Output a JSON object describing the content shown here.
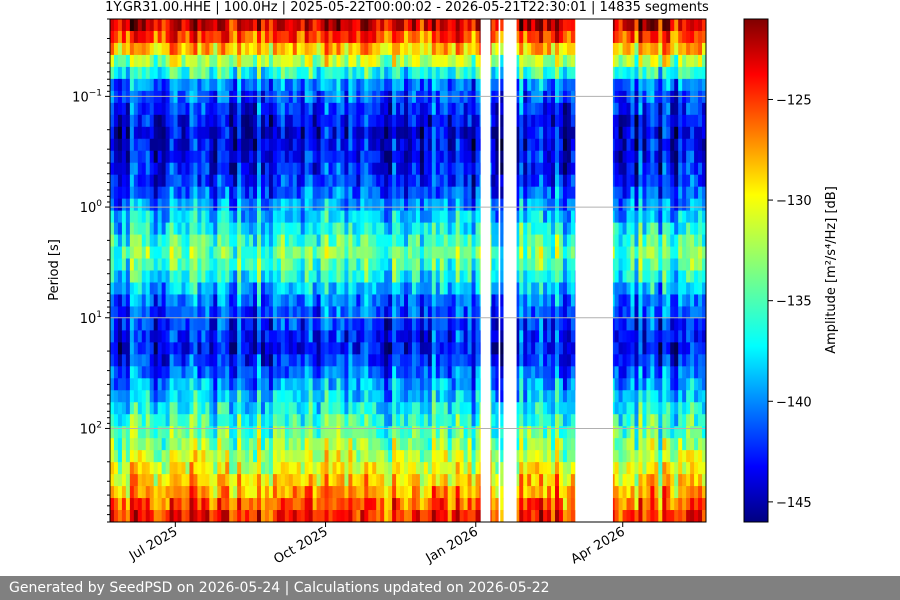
{
  "chart_data": {
    "type": "heatmap",
    "title": "1Y.GR31.00.HHE | 100.0Hz | 2025-05-22T00:00:02 - 2026-05-21T22:30:01 | 14835 segments",
    "ylabel": "Period [s]",
    "xlabel": "",
    "y_scale": "log",
    "y_inverted": true,
    "ylim": [
      0.02,
      700
    ],
    "x_range": [
      "2025-05-22",
      "2026-05-21"
    ],
    "x_ticks": [
      {
        "date": "2025-07-01",
        "label": "Jul 2025"
      },
      {
        "date": "2025-10-01",
        "label": "Oct 2025"
      },
      {
        "date": "2026-01-01",
        "label": "Jan 2026"
      },
      {
        "date": "2026-04-01",
        "label": "Apr 2026"
      }
    ],
    "y_ticks": [
      {
        "value": 0.1,
        "base": "10",
        "exp": "−1"
      },
      {
        "value": 1,
        "base": "10",
        "exp": "0"
      },
      {
        "value": 10,
        "base": "10",
        "exp": "1"
      },
      {
        "value": 100,
        "base": "10",
        "exp": "2"
      }
    ],
    "grid": true,
    "colorbar": {
      "label": "Amplitude [m²/s⁴/Hz] [dB]",
      "range": [
        -146,
        -121
      ],
      "colormap": "jet",
      "ticks": [
        "−125",
        "−130",
        "−135",
        "−140",
        "−145"
      ],
      "tick_values": [
        -125,
        -130,
        -135,
        -140,
        -145
      ]
    },
    "data_gaps": [
      [
        "2026-01-04",
        "2026-01-10"
      ],
      [
        "2026-01-15",
        "2026-01-16"
      ],
      [
        "2026-01-18",
        "2026-01-26"
      ],
      [
        "2026-03-03",
        "2026-03-26"
      ]
    ],
    "period_profile_db": [
      {
        "period": 0.02,
        "db": -122
      },
      {
        "period": 0.03,
        "db": -126
      },
      {
        "period": 0.05,
        "db": -133
      },
      {
        "period": 0.08,
        "db": -140
      },
      {
        "period": 0.2,
        "db": -144
      },
      {
        "period": 0.6,
        "db": -142
      },
      {
        "period": 1.5,
        "db": -137
      },
      {
        "period": 2.5,
        "db": -134
      },
      {
        "period": 4,
        "db": -136
      },
      {
        "period": 8,
        "db": -141
      },
      {
        "period": 20,
        "db": -143
      },
      {
        "period": 50,
        "db": -138
      },
      {
        "period": 150,
        "db": -133
      },
      {
        "period": 400,
        "db": -128
      },
      {
        "period": 700,
        "db": -124
      }
    ]
  },
  "footer": {
    "text": "Generated by SeedPSD on 2026-05-24 | Calculations updated on 2026-05-22"
  }
}
